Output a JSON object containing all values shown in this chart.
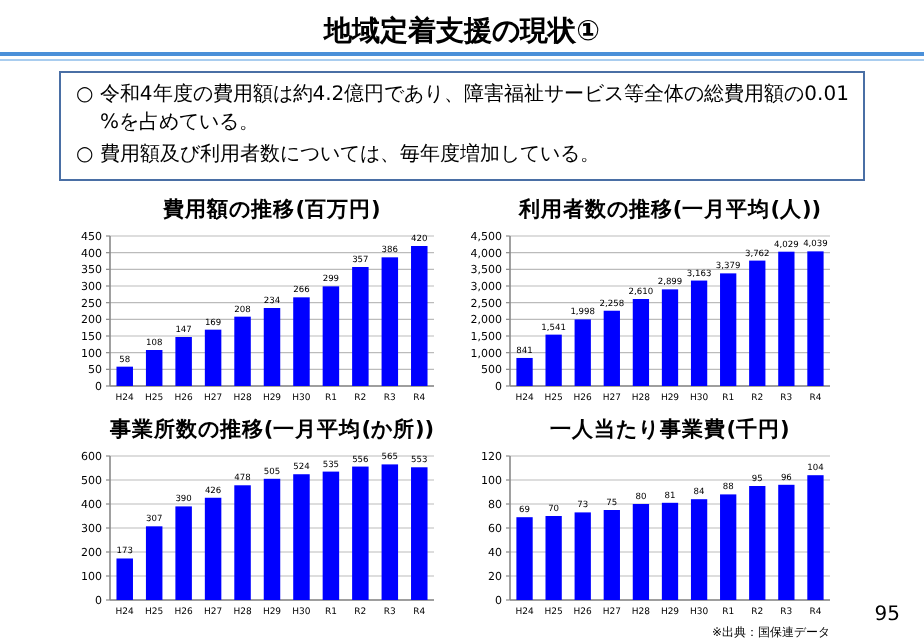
{
  "chart_data": [
    {
      "type": "bar",
      "title": "費用額の推移(百万円)",
      "annotations": [
        "地域定着支援の現状①",
        "○ 令和4年度の費用額は約4.2億円であり、障害福祉サービス等全体の総費用額の0.01%を占めている。",
        "○ 費用額及び利用者数については、毎年度増加している。"
      ],
      "categories": [
        "H24",
        "H25",
        "H26",
        "H27",
        "H28",
        "H29",
        "H30",
        "R1",
        "R2",
        "R3",
        "R4"
      ],
      "values": [
        58,
        108,
        147,
        169,
        208,
        234,
        266,
        299,
        357,
        386,
        420
      ],
      "color": "#0000ff",
      "ylim": [
        0,
        450
      ],
      "yticks": [
        0,
        50,
        100,
        150,
        200,
        250,
        300,
        350,
        400,
        450
      ],
      "grid": "y",
      "data_labels": true
    },
    {
      "type": "bar",
      "title": "利用者数の推移(一月平均(人))",
      "categories": [
        "H24",
        "H25",
        "H26",
        "H27",
        "H28",
        "H29",
        "H30",
        "R1",
        "R2",
        "R3",
        "R4"
      ],
      "values": [
        841,
        1541,
        1998,
        2258,
        2610,
        2899,
        3163,
        3379,
        3762,
        4029,
        4039
      ],
      "value_labels": [
        "841",
        "1,541",
        "1,998",
        "2,258",
        "2,610",
        "2,899",
        "3,163",
        "3,379",
        "3,762",
        "4,029",
        "4,039"
      ],
      "color": "#0000ff",
      "ylim": [
        0,
        4500
      ],
      "yticks": [
        0,
        500,
        {
          "value": 1000,
          "label": "1,000"
        },
        {
          "value": 1500,
          "label": "1,500"
        },
        {
          "value": 2000,
          "label": "2,000"
        },
        {
          "value": 2500,
          "label": "2,500"
        },
        {
          "value": 3000,
          "label": "3,000"
        },
        {
          "value": 3500,
          "label": "3,500"
        },
        {
          "value": 4000,
          "label": "4,000"
        },
        {
          "value": 4500,
          "label": "4,500"
        }
      ],
      "grid": "y"
    },
    {
      "type": "bar",
      "title": "事業所数の推移(一月平均(か所))",
      "categories": [
        "H24",
        "H25",
        "H26",
        "H27",
        "H28",
        "H29",
        "H30",
        "R1",
        "R2",
        "R3",
        "R4"
      ],
      "values": [
        173,
        307,
        390,
        426,
        478,
        505,
        524,
        535,
        556,
        565,
        553
      ],
      "color": "#0000ff",
      "ylim": [
        0,
        600
      ],
      "yticks": [
        0,
        100,
        200,
        300,
        400,
        500,
        600
      ],
      "grid": "y",
      "data_labels": true
    },
    {
      "type": "bar",
      "title": "一人当たり事業費(千円)",
      "annotations": [
        "※出典：国保連データ",
        "95"
      ],
      "categories": [
        "H24",
        "H25",
        "H26",
        "H27",
        "H28",
        "H29",
        "H30",
        "R1",
        "R2",
        "R3",
        "R4"
      ],
      "values": [
        69,
        70,
        73,
        75,
        80,
        81,
        84,
        88,
        95,
        96,
        104
      ],
      "color": "#0000ff",
      "ylim": [
        0,
        120
      ],
      "yticks": [
        0,
        20,
        40,
        60,
        80,
        100,
        120
      ],
      "grid": "y",
      "data_labels": true
    }
  ]
}
